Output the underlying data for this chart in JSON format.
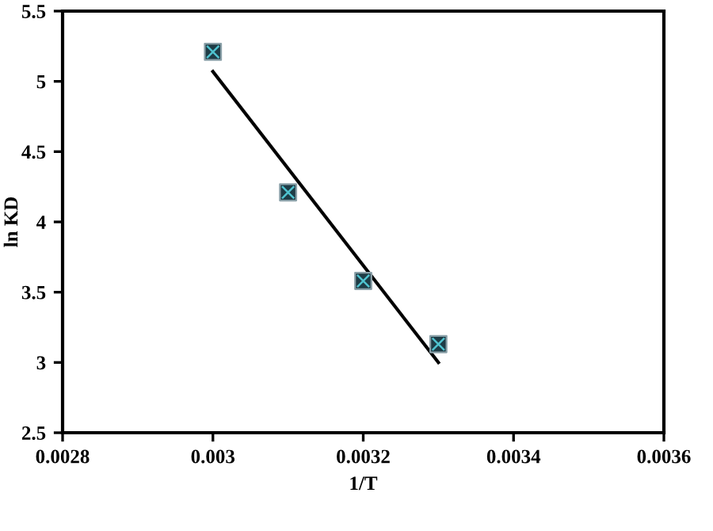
{
  "chart_data": {
    "type": "scatter",
    "xlabel": "1/T",
    "ylabel": "ln KD",
    "series": [
      {
        "color": "#1e3c46",
        "marker": "square",
        "x": [
          0.003,
          0.0031,
          0.0032,
          0.0033
        ],
        "values": [
          5.21,
          4.21,
          3.58,
          3.13
        ]
      },
      {
        "type": "line",
        "color": "#000000",
        "marker": "none",
        "line_style": "solid",
        "x": [
          0.003,
          0.0033
        ],
        "values": [
          5.07,
          3.0
        ]
      }
    ],
    "xlim": [
      0.0028,
      0.0036
    ],
    "xticks": [
      0.0028,
      0.003,
      0.0032,
      0.0034,
      0.0036
    ],
    "ylim": [
      2.5,
      5.5
    ],
    "yticks": [
      2.5,
      3,
      3.5,
      4,
      4.5,
      5,
      5.5
    ],
    "grid": false,
    "legend": false
  }
}
